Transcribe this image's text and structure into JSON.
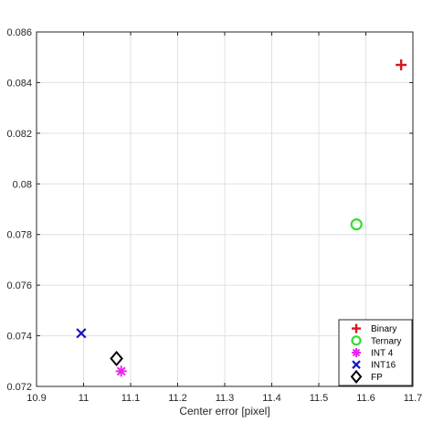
{
  "chart_data": {
    "type": "scatter",
    "title": "",
    "xlabel": "Center error [pixel]",
    "ylabel": "",
    "xlim": [
      10.9,
      11.7
    ],
    "ylim": [
      0.072,
      0.086
    ],
    "x_ticks": [
      10.9,
      11.0,
      11.1,
      11.2,
      11.3,
      11.4,
      11.5,
      11.6,
      11.7
    ],
    "x_tick_labels": [
      "10.9",
      "11",
      "11.1",
      "11.2",
      "11.3",
      "11.4",
      "11.5",
      "11.6",
      "11.7"
    ],
    "y_ticks": [
      0.072,
      0.074,
      0.076,
      0.078,
      0.08,
      0.082,
      0.084,
      0.086
    ],
    "y_tick_labels": [
      "0.072",
      "0.074",
      "0.076",
      "0.078",
      "0.08",
      "0.082",
      "0.084",
      "0.086"
    ],
    "grid": true,
    "legend_position": "bottom-right",
    "series": [
      {
        "name": "Binary",
        "marker": "plus",
        "color": "#d7191c",
        "x": [
          11.675
        ],
        "y": [
          0.0847
        ]
      },
      {
        "name": "Ternary",
        "marker": "circle",
        "color": "#33dd33",
        "x": [
          11.58
        ],
        "y": [
          0.0784
        ]
      },
      {
        "name": "INT 4",
        "marker": "asterisk",
        "color": "#ee22ee",
        "x": [
          11.08
        ],
        "y": [
          0.0726
        ]
      },
      {
        "name": "INT16",
        "marker": "x",
        "color": "#1515c8",
        "x": [
          10.995
        ],
        "y": [
          0.0741
        ]
      },
      {
        "name": "FP",
        "marker": "diamond",
        "color": "#000000",
        "x": [
          11.07
        ],
        "y": [
          0.0731
        ]
      }
    ]
  }
}
